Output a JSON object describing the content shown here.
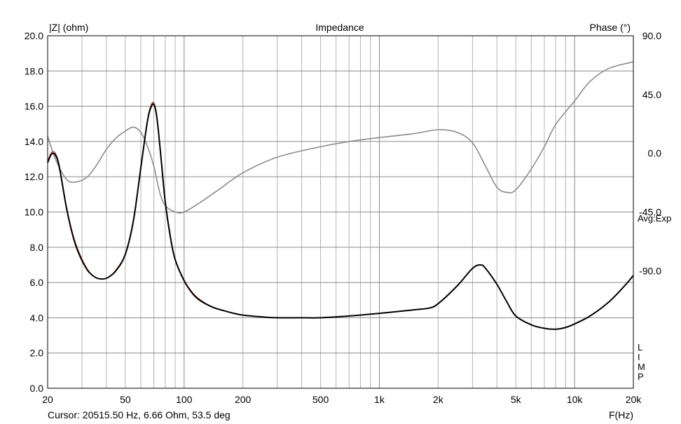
{
  "chart_data": {
    "type": "line",
    "title": "Impedance",
    "ylabel_left": "|Z| (ohm)",
    "ylabel_right": "Phase (°)",
    "xlabel": "F(Hz)",
    "xscale": "log",
    "xlim": [
      20,
      20000
    ],
    "ylim_left": [
      0,
      20
    ],
    "ylim_right": [
      -180,
      90
    ],
    "grid": true,
    "x_ticks": [
      {
        "value": 20,
        "label": "20"
      },
      {
        "value": 50,
        "label": "50"
      },
      {
        "value": 100,
        "label": "100"
      },
      {
        "value": 200,
        "label": "200"
      },
      {
        "value": 500,
        "label": "500"
      },
      {
        "value": 1000,
        "label": "1k"
      },
      {
        "value": 2000,
        "label": "2k"
      },
      {
        "value": 5000,
        "label": "5k"
      },
      {
        "value": 10000,
        "label": "10k"
      },
      {
        "value": 20000,
        "label": "20k"
      }
    ],
    "y_left_ticks": [
      "0.0",
      "2.0",
      "4.0",
      "6.0",
      "8.0",
      "10.0",
      "12.0",
      "14.0",
      "16.0",
      "18.0",
      "20.0"
    ],
    "y_right_ticks": [
      {
        "value": 90,
        "label": "90.0"
      },
      {
        "value": 45,
        "label": "45.0"
      },
      {
        "value": 0,
        "label": "0.0"
      },
      {
        "value": -45,
        "label": "-45.0"
      },
      {
        "value": -90,
        "label": "-90.0"
      }
    ],
    "avg_label": "Avg:Exp",
    "side_letters": [
      "L",
      "I",
      "M",
      "P"
    ],
    "cursor_text": "Cursor: 20515.50 Hz, 6.66 Ohm, 53.5 deg",
    "series": [
      {
        "axis": "left",
        "color": "#000000",
        "width": 2,
        "x": [
          20,
          21,
          22,
          23,
          25,
          27,
          29,
          32,
          35,
          38,
          41,
          45,
          50,
          55,
          60,
          65,
          68,
          70,
          72,
          74,
          77,
          80,
          85,
          90,
          100,
          110,
          120,
          140,
          160,
          180,
          200,
          250,
          300,
          400,
          500,
          700,
          1000,
          1500,
          1800,
          2000,
          2500,
          3000,
          3300,
          3500,
          4000,
          4500,
          5000,
          6000,
          7000,
          8000,
          9000,
          10000,
          12000,
          15000,
          18000,
          20000
        ],
        "y": [
          12.8,
          13.3,
          13.2,
          12.5,
          10.2,
          8.6,
          7.6,
          6.7,
          6.3,
          6.2,
          6.3,
          6.7,
          7.6,
          9.5,
          12.5,
          15.2,
          16.0,
          16.1,
          15.6,
          14.5,
          12.5,
          10.6,
          8.6,
          7.3,
          6.1,
          5.4,
          5.0,
          4.6,
          4.4,
          4.25,
          4.15,
          4.05,
          4.0,
          4.0,
          4.0,
          4.1,
          4.25,
          4.45,
          4.55,
          4.8,
          5.8,
          6.8,
          7.0,
          6.8,
          5.9,
          4.9,
          4.1,
          3.6,
          3.4,
          3.35,
          3.45,
          3.65,
          4.1,
          4.9,
          5.8,
          6.4
        ]
      },
      {
        "axis": "left",
        "color": "#c0392b",
        "width": 1.2,
        "x": [
          20,
          21,
          22,
          23,
          25,
          27,
          29,
          32,
          35,
          38,
          41,
          45,
          50,
          55,
          60,
          65,
          68,
          70,
          72,
          74,
          77,
          80,
          85,
          90,
          100,
          110,
          120,
          140,
          160,
          180,
          200,
          250,
          300,
          400,
          500,
          700,
          1000,
          1500,
          1800,
          2000,
          2500,
          3000,
          3300,
          3500,
          4000,
          4500,
          5000,
          6000,
          7000,
          8000,
          9000,
          10000,
          12000,
          15000,
          18000,
          20000
        ],
        "y": [
          12.9,
          13.4,
          13.3,
          12.6,
          10.3,
          8.7,
          7.7,
          6.75,
          6.3,
          6.2,
          6.3,
          6.75,
          7.65,
          9.6,
          12.6,
          15.3,
          16.1,
          16.2,
          15.7,
          14.6,
          12.6,
          10.7,
          8.7,
          7.35,
          6.15,
          5.45,
          5.05,
          4.6,
          4.4,
          4.25,
          4.15,
          4.05,
          4.0,
          4.0,
          4.0,
          4.1,
          4.25,
          4.45,
          4.55,
          4.8,
          5.8,
          6.8,
          7.0,
          6.8,
          5.9,
          4.9,
          4.1,
          3.6,
          3.4,
          3.35,
          3.45,
          3.65,
          4.1,
          4.9,
          5.8,
          6.4
        ]
      },
      {
        "axis": "right",
        "color": "#8c8c8c",
        "width": 1.6,
        "x": [
          20,
          22,
          25,
          28,
          32,
          36,
          40,
          45,
          50,
          55,
          60,
          65,
          70,
          75,
          80,
          90,
          100,
          120,
          150,
          200,
          300,
          500,
          700,
          1000,
          1500,
          2000,
          2500,
          3000,
          3500,
          4000,
          4500,
          5000,
          6000,
          7000,
          8000,
          10000,
          12000,
          15000,
          20000
        ],
        "y": [
          13,
          -5,
          -20,
          -22,
          -18,
          -8,
          3,
          12,
          17,
          20,
          16,
          5,
          -10,
          -30,
          -40,
          -45,
          -45,
          -38,
          -28,
          -15,
          -3,
          5,
          9,
          12,
          15,
          18,
          16,
          8,
          -10,
          -26,
          -30,
          -28,
          -12,
          5,
          22,
          40,
          55,
          65,
          70
        ]
      }
    ]
  }
}
